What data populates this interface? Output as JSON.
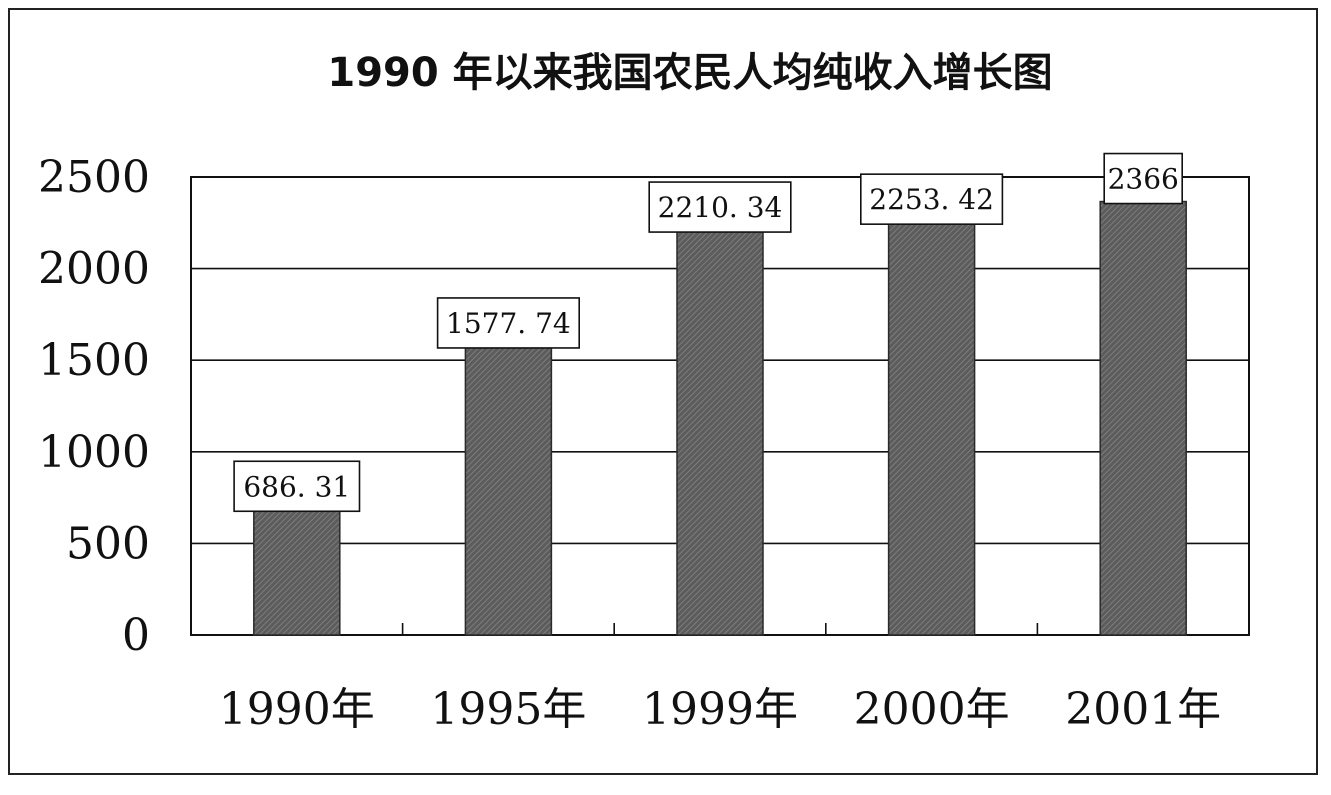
{
  "chart_data": {
    "type": "bar",
    "title": "1990 年以来我国农民人均纯收入增长图",
    "categories": [
      "1990年",
      "1995年",
      "1999年",
      "2000年",
      "2001年"
    ],
    "values": [
      686.31,
      1577.74,
      2210.34,
      2253.42,
      2366
    ],
    "data_labels": [
      "686. 31",
      "1577. 74",
      "2210. 34",
      "2253. 42",
      "2366"
    ],
    "yticks": [
      0,
      500,
      1000,
      1500,
      2000,
      2500
    ],
    "ylim": [
      0,
      2500
    ],
    "xlabel": "",
    "ylabel": "",
    "grid": true,
    "colors": {
      "bar": "#5a5a5a",
      "bar_hatch": "#8a8a8a",
      "grid": "#111111",
      "frame": "#111111"
    }
  }
}
